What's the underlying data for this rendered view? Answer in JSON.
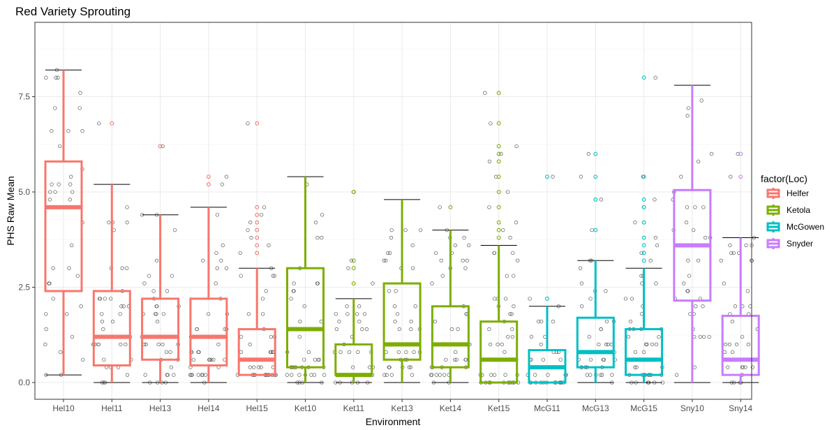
{
  "chart_data": {
    "type": "boxplot",
    "title": "Red Variety Sprouting",
    "xlabel": "Environment",
    "ylabel": "PHS Raw Mean",
    "ylim": [
      -0.4,
      9.3
    ],
    "yticks": [
      0.0,
      2.5,
      5.0,
      7.5
    ],
    "ytick_labels": [
      "0.0",
      "2.5",
      "5.0",
      "7.5"
    ],
    "grid": true,
    "legend": {
      "title": "factor(Loc)",
      "position": "right",
      "entries": [
        {
          "label": "Helfer",
          "color": "#F8766D"
        },
        {
          "label": "Ketola",
          "color": "#7CAE00"
        },
        {
          "label": "McGowen",
          "color": "#00BFC4"
        },
        {
          "label": "Snyder",
          "color": "#C77CFF"
        }
      ]
    },
    "categories": [
      "Hel10",
      "Hel11",
      "Hel13",
      "Hel14",
      "Hel15",
      "Ket10",
      "Ket11",
      "Ket13",
      "Ket14",
      "Ket15",
      "McG11",
      "McG13",
      "McG15",
      "Sny10",
      "Sny14"
    ],
    "boxes": [
      {
        "env": "Hel10",
        "loc": "Helfer",
        "min": 0.2,
        "q1": 2.4,
        "median": 4.6,
        "q3": 5.8,
        "max": 8.2,
        "outliers": []
      },
      {
        "env": "Hel11",
        "loc": "Helfer",
        "min": 0.0,
        "q1": 0.45,
        "median": 1.2,
        "q3": 2.4,
        "max": 5.2,
        "outliers": [
          6.8
        ]
      },
      {
        "env": "Hel13",
        "loc": "Helfer",
        "min": 0.0,
        "q1": 0.6,
        "median": 1.2,
        "q3": 2.2,
        "max": 4.4,
        "outliers": [
          6.2
        ]
      },
      {
        "env": "Hel14",
        "loc": "Helfer",
        "min": 0.0,
        "q1": 0.45,
        "median": 1.2,
        "q3": 2.2,
        "max": 4.6,
        "outliers": [
          5.2,
          5.4
        ]
      },
      {
        "env": "Hel15",
        "loc": "Helfer",
        "min": 0.2,
        "q1": 0.2,
        "median": 0.6,
        "q3": 1.4,
        "max": 3.0,
        "outliers": [
          3.4,
          3.6,
          3.8,
          4.0,
          4.2,
          4.4,
          4.6,
          6.8
        ]
      },
      {
        "env": "Ket10",
        "loc": "Ketola",
        "min": 0.0,
        "q1": 0.4,
        "median": 1.4,
        "q3": 3.0,
        "max": 5.4,
        "outliers": []
      },
      {
        "env": "Ket11",
        "loc": "Ketola",
        "min": 0.0,
        "q1": 0.2,
        "median": 0.2,
        "q3": 1.0,
        "max": 2.2,
        "outliers": [
          2.6,
          3.0,
          3.2,
          5.0
        ]
      },
      {
        "env": "Ket13",
        "loc": "Ketola",
        "min": 0.0,
        "q1": 0.6,
        "median": 1.0,
        "q3": 2.6,
        "max": 4.8,
        "outliers": []
      },
      {
        "env": "Ket14",
        "loc": "Ketola",
        "min": 0.0,
        "q1": 0.4,
        "median": 1.0,
        "q3": 2.0,
        "max": 4.0,
        "outliers": [
          4.6
        ]
      },
      {
        "env": "Ket15",
        "loc": "Ketola",
        "min": 0.0,
        "q1": 0.0,
        "median": 0.6,
        "q3": 1.6,
        "max": 3.6,
        "outliers": [
          3.8,
          4.0,
          4.2,
          4.6,
          5.0,
          5.4,
          5.8,
          6.0,
          6.2,
          6.8,
          7.6
        ]
      },
      {
        "env": "McG11",
        "loc": "McGowen",
        "min": 0.0,
        "q1": 0.0,
        "median": 0.4,
        "q3": 0.85,
        "max": 2.0,
        "outliers": [
          2.2,
          5.4
        ]
      },
      {
        "env": "McG13",
        "loc": "McGowen",
        "min": 0.0,
        "q1": 0.4,
        "median": 0.8,
        "q3": 1.7,
        "max": 3.2,
        "outliers": [
          4.0,
          4.8,
          5.4,
          6.0
        ]
      },
      {
        "env": "McG15",
        "loc": "McGowen",
        "min": 0.0,
        "q1": 0.2,
        "median": 0.6,
        "q3": 1.4,
        "max": 3.0,
        "outliers": [
          3.2,
          3.4,
          3.6,
          3.8,
          4.2,
          4.6,
          4.8,
          5.4,
          8.0
        ]
      },
      {
        "env": "Sny10",
        "loc": "Snyder",
        "min": 0.0,
        "q1": 2.15,
        "median": 3.6,
        "q3": 5.05,
        "max": 7.8,
        "outliers": []
      },
      {
        "env": "Sny14",
        "loc": "Snyder",
        "min": 0.0,
        "q1": 0.2,
        "median": 0.6,
        "q3": 1.75,
        "max": 3.8,
        "outliers": [
          5.4,
          6.0
        ]
      }
    ]
  }
}
